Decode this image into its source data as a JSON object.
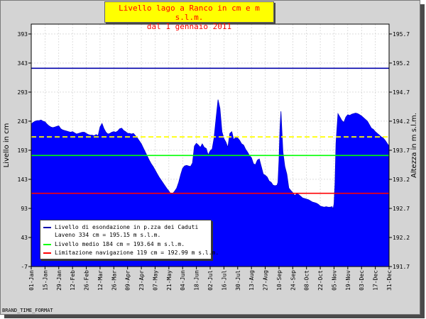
{
  "title_line1": "Livello lago a Ranco in cm e m s.l.m.",
  "title_line2": "dal 1 gennaio 2011",
  "footer": "BRAND_TIME_FORMAT",
  "colors": {
    "fill": "#0000ff",
    "esondazione": "#0000aa",
    "medio": "#00ff00",
    "navigazione": "#ff0000",
    "current": "#ffff00"
  },
  "chart_data": {
    "type": "area",
    "ylabel": "Livello in cm",
    "ylabel_right": "Altezza in m s.l.m.",
    "ylim": [
      -7,
      410
    ],
    "ylim_right": [
      191.7,
      195.87
    ],
    "yticks": [
      "-7",
      "43",
      "93",
      "143",
      "193",
      "243",
      "293",
      "343",
      "393"
    ],
    "yticks_right": [
      "191.7",
      "192.2",
      "192.7",
      "193.2",
      "193.7",
      "194.2",
      "194.7",
      "195.2",
      "195.7"
    ],
    "xticks": [
      "01-Jan",
      "15-Jan",
      "29-Jan",
      "12-Feb",
      "26-Feb",
      "12-Mar",
      "26-Mar",
      "09-Apr",
      "23-Apr",
      "07-May",
      "21-May",
      "04-Jun",
      "18-Jun",
      "02-Jul",
      "16-Jul",
      "30-Jul",
      "13-Aug",
      "27-Aug",
      "10-Sep",
      "24-Sep",
      "08-Oct",
      "22-Oct",
      "05-Nov",
      "19-Nov",
      "03-Dec",
      "17-Dec",
      "31-Dec"
    ],
    "x_days": [
      0,
      14,
      28,
      42,
      56,
      70,
      84,
      98,
      112,
      126,
      140,
      154,
      168,
      182,
      196,
      210,
      224,
      238,
      252,
      266,
      280,
      294,
      308,
      322,
      336,
      350,
      364
    ],
    "series": [
      {
        "x": [
          0,
          2,
          4,
          6,
          8,
          10,
          12,
          14,
          16,
          18,
          20,
          22,
          24,
          26,
          28,
          30,
          32,
          34,
          36,
          38,
          40,
          42,
          44,
          46,
          48,
          50,
          52,
          54,
          56,
          58,
          60,
          62,
          64,
          66,
          68,
          70,
          72,
          74,
          76,
          78,
          80,
          82,
          84,
          86,
          88,
          90,
          92,
          94,
          96,
          98,
          100,
          102,
          104,
          106,
          108,
          110,
          112,
          114,
          116,
          118,
          120,
          122,
          124,
          126,
          128,
          130,
          132,
          134,
          136,
          138,
          140,
          142,
          144,
          146,
          148,
          150,
          152,
          154,
          156,
          158,
          160,
          162,
          164,
          166,
          168,
          170,
          172,
          174,
          176,
          178,
          180,
          182,
          184,
          186,
          188,
          190,
          192,
          194,
          196,
          198,
          200,
          202,
          204,
          206,
          208,
          210,
          212,
          214,
          216,
          218,
          220,
          222,
          224,
          226,
          228,
          230,
          232,
          234,
          236,
          238,
          240,
          242,
          244,
          246,
          248,
          250,
          251,
          252,
          253,
          254,
          256,
          258,
          260,
          262,
          264,
          266,
          268,
          270,
          272,
          274,
          276,
          278,
          280,
          282,
          284,
          286,
          288,
          290,
          292,
          294,
          296,
          298,
          300,
          302,
          304,
          306,
          307,
          308,
          309,
          310,
          312,
          314,
          316,
          318,
          320,
          322,
          324,
          326,
          328,
          330,
          332,
          334,
          336,
          338,
          340,
          342,
          344,
          346,
          348,
          350,
          352,
          354,
          356,
          358,
          360,
          362,
          364
        ],
        "y": [
          238,
          241,
          243,
          244,
          244,
          245,
          243,
          242,
          238,
          235,
          233,
          232,
          233,
          234,
          235,
          230,
          228,
          227,
          226,
          225,
          224,
          225,
          223,
          221,
          222,
          223,
          224,
          224,
          222,
          220,
          219,
          219,
          218,
          220,
          218,
          233,
          239,
          230,
          224,
          221,
          222,
          224,
          225,
          224,
          226,
          230,
          231,
          227,
          225,
          222,
          222,
          221,
          222,
          218,
          214,
          209,
          204,
          197,
          190,
          183,
          176,
          170,
          165,
          159,
          153,
          147,
          142,
          137,
          132,
          127,
          123,
          118,
          119,
          123,
          128,
          138,
          151,
          162,
          166,
          167,
          166,
          165,
          171,
          200,
          205,
          202,
          198,
          204,
          198,
          196,
          185,
          192,
          195,
          214,
          248,
          280,
          265,
          225,
          213,
          207,
          198,
          222,
          225,
          211,
          216,
          214,
          210,
          204,
          202,
          195,
          190,
          184,
          180,
          170,
          168,
          176,
          178,
          165,
          152,
          150,
          147,
          140,
          138,
          133,
          132,
          133,
          138,
          175,
          230,
          260,
          190,
          165,
          152,
          128,
          124,
          120,
          115,
          118,
          117,
          114,
          111,
          110,
          109,
          108,
          106,
          104,
          103,
          102,
          100,
          97,
          96,
          95,
          96,
          95,
          95,
          96,
          92,
          101,
          135,
          205,
          256,
          250,
          244,
          241,
          250,
          254,
          253,
          255,
          256,
          257,
          256,
          254,
          252,
          249,
          246,
          243,
          237,
          231,
          229,
          225,
          222,
          219,
          216,
          214,
          210,
          205,
          200
        ]
      }
    ],
    "annotations": [
      {
        "label": "Livello di esondazione in p.zza dei Caduti",
        "label2": "Laveno 334 cm = 195.15 m s.l.m.",
        "value": 334,
        "style": "solid",
        "color": "#0000aa"
      },
      {
        "label": "Livello medio 184 cm = 193.64 m s.l.m.",
        "value": 184,
        "style": "solid",
        "color": "#00ff00"
      },
      {
        "label": "Limitazione navigazione 119 cm = 192.99 m s.l.m.",
        "value": 119,
        "style": "solid",
        "color": "#ff0000"
      },
      {
        "label": "",
        "value": 216,
        "style": "dashed",
        "color": "#ffff00"
      }
    ],
    "grid": true,
    "legend_position": "bottom-left"
  }
}
